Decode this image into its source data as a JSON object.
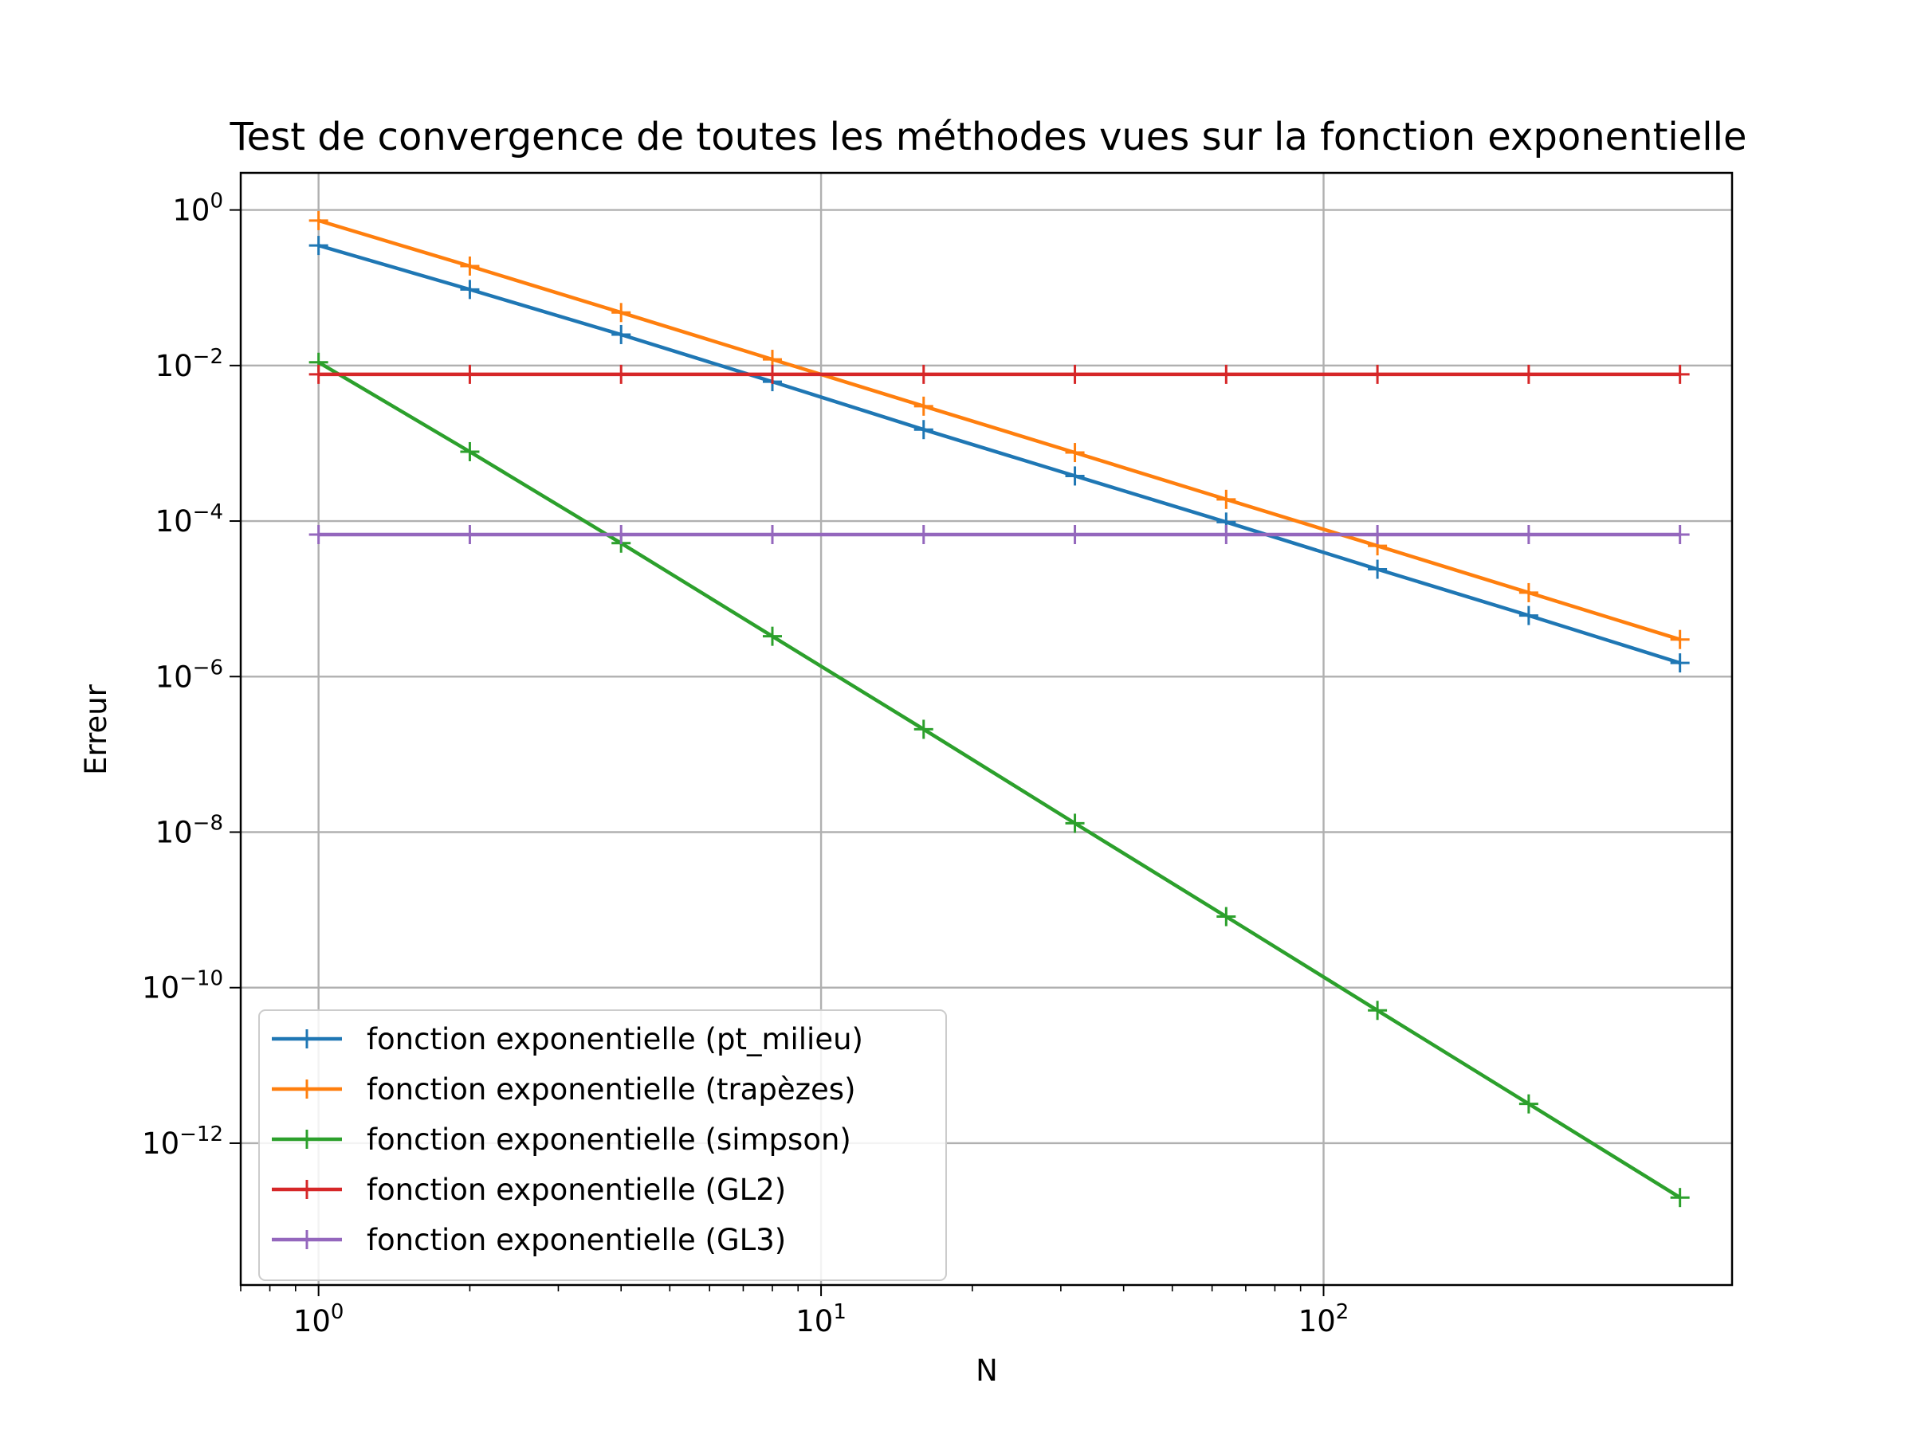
{
  "chart_data": {
    "type": "line",
    "title": "Test de convergence de toutes les méthodes vues sur la fonction exponentielle",
    "xlabel": "N",
    "ylabel": "Erreur",
    "xscale": "log",
    "yscale": "log",
    "xlim": [
      0.7,
      650
    ],
    "ylim": [
      1.5e-14,
      3
    ],
    "grid": true,
    "legend_position": "lower-left",
    "x_ticks": [
      {
        "value": 1,
        "base": "10",
        "exp": "0"
      },
      {
        "value": 10,
        "base": "10",
        "exp": "1"
      },
      {
        "value": 100,
        "base": "10",
        "exp": "2"
      }
    ],
    "y_ticks": [
      {
        "value": 1,
        "base": "10",
        "exp": "0"
      },
      {
        "value": 0.01,
        "base": "10",
        "exp": "−2"
      },
      {
        "value": 0.0001,
        "base": "10",
        "exp": "−4"
      },
      {
        "value": 1e-06,
        "base": "10",
        "exp": "−6"
      },
      {
        "value": 1e-08,
        "base": "10",
        "exp": "−8"
      },
      {
        "value": 1e-10,
        "base": "10",
        "exp": "−10"
      },
      {
        "value": 1e-12,
        "base": "10",
        "exp": "−12"
      }
    ],
    "x": [
      1,
      2,
      4,
      8,
      16,
      32,
      64,
      128,
      256,
      512
    ],
    "series": [
      {
        "name": "fonction exponentielle (pt_milieu)",
        "color": "#1f77b4",
        "values": [
          0.35,
          0.095,
          0.025,
          0.0062,
          0.0015,
          0.00038,
          9.7e-05,
          2.4e-05,
          6.1e-06,
          1.5e-06
        ]
      },
      {
        "name": "fonction exponentielle (trapèzes)",
        "color": "#ff7f0e",
        "values": [
          0.73,
          0.19,
          0.048,
          0.012,
          0.003,
          0.00076,
          0.00019,
          4.8e-05,
          1.2e-05,
          3e-06
        ]
      },
      {
        "name": "fonction exponentielle (simpson)",
        "color": "#2ca02c",
        "values": [
          0.011,
          0.00078,
          5.2e-05,
          3.3e-06,
          2.1e-07,
          1.3e-08,
          8.2e-10,
          5.1e-11,
          3.2e-12,
          2e-13
        ]
      },
      {
        "name": "fonction exponentielle (GL2)",
        "color": "#d62728",
        "values": [
          0.0077,
          0.0077,
          0.0077,
          0.0077,
          0.0077,
          0.0077,
          0.0077,
          0.0077,
          0.0077,
          0.0077
        ]
      },
      {
        "name": "fonction exponentielle (GL3)",
        "color": "#9467bd",
        "values": [
          6.7e-05,
          6.7e-05,
          6.7e-05,
          6.7e-05,
          6.7e-05,
          6.7e-05,
          6.7e-05,
          6.7e-05,
          6.7e-05,
          6.7e-05
        ]
      }
    ]
  }
}
